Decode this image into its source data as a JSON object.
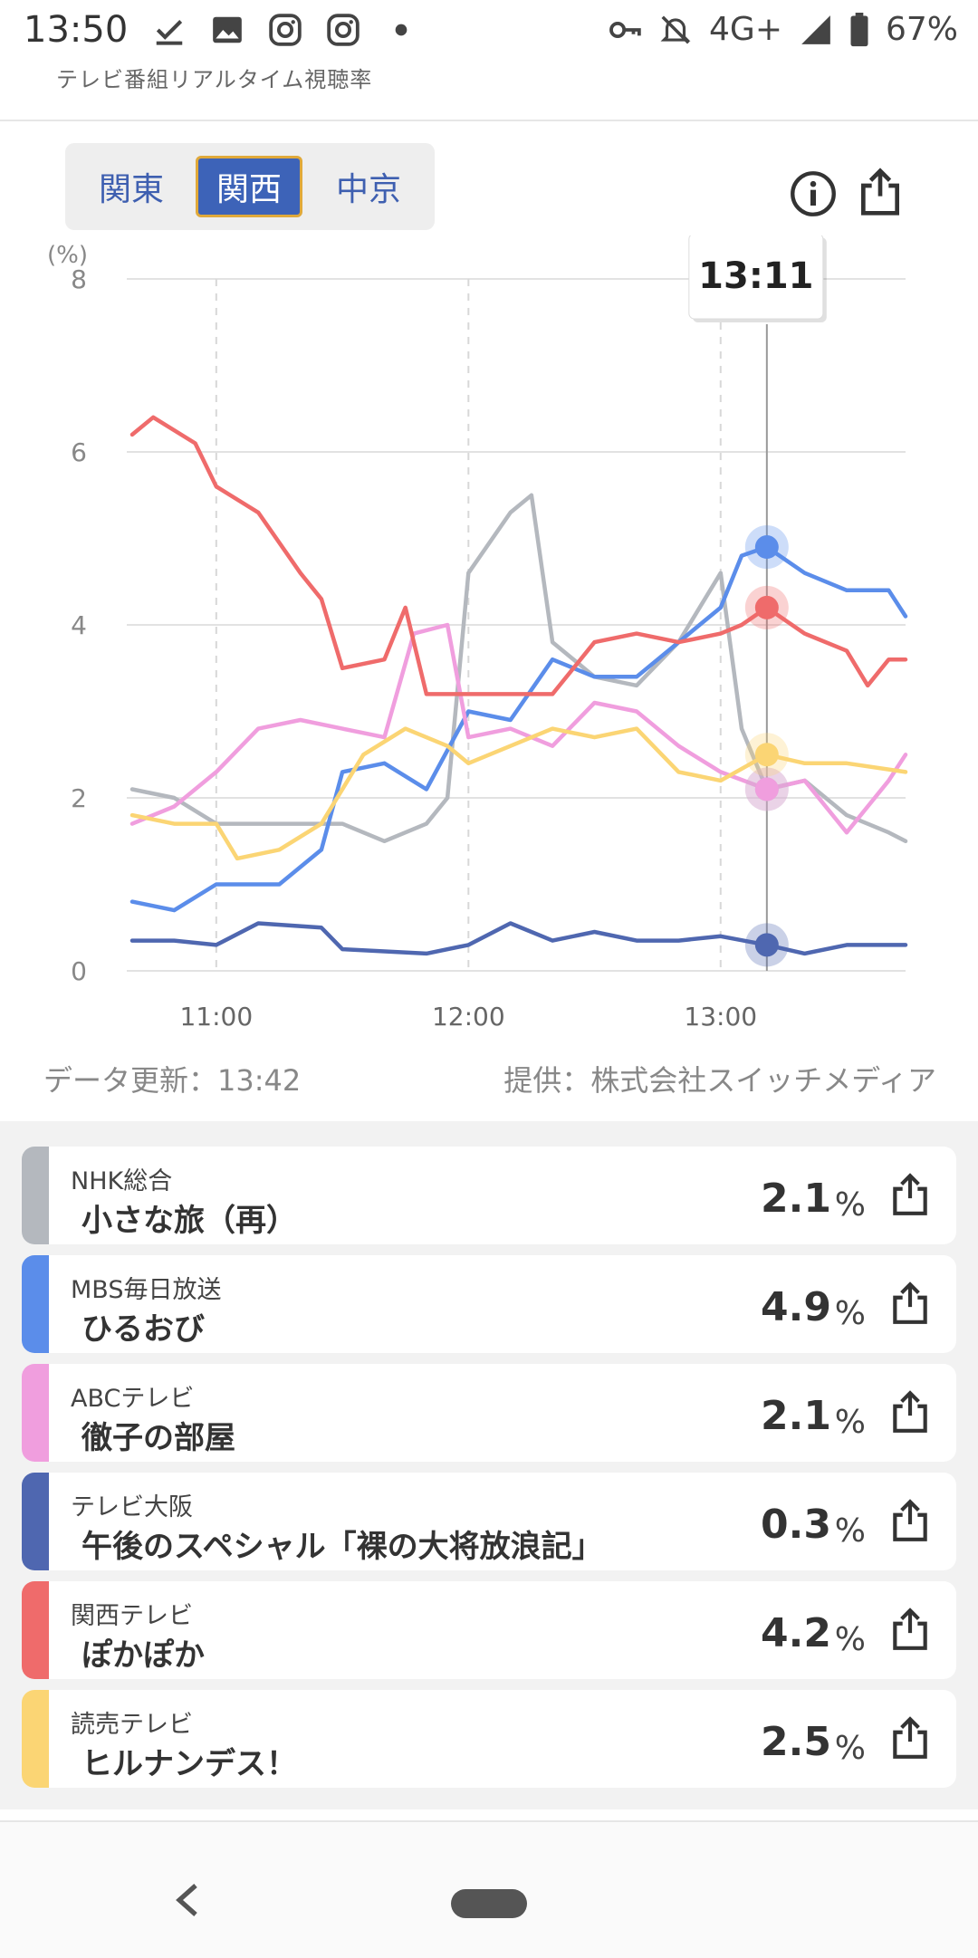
{
  "status_bar": {
    "time": "13:50",
    "network": "4G+",
    "battery": "67%",
    "icons": [
      "check-download-icon",
      "image-icon",
      "instagram-icon",
      "instagram-icon",
      "dot-icon",
      "key-icon",
      "bell-off-icon",
      "signal-icon",
      "battery-icon"
    ]
  },
  "app": {
    "title": "テレビ番組リアルタイム視聴率"
  },
  "regions": [
    {
      "label": "関東",
      "selected": false
    },
    {
      "label": "関西",
      "selected": true
    },
    {
      "label": "中京",
      "selected": false
    }
  ],
  "header_icons": {
    "info": "info-icon",
    "share": "share-icon"
  },
  "colors": {
    "nhk": "#b4b8be",
    "mbs": "#5b8dea",
    "abc": "#f09ede",
    "tvo": "#4f67b0",
    "ktv": "#ef6b6b",
    "ytv": "#fbd574",
    "accent": "#3d63b8"
  },
  "chart_data": {
    "type": "line",
    "ylabel": "(%)",
    "ylim": [
      0,
      8
    ],
    "yticks": [
      0,
      2,
      4,
      6,
      8
    ],
    "xlim": [
      "10:40",
      "13:44"
    ],
    "xticks": [
      "11:00",
      "12:00",
      "13:00"
    ],
    "tooltip": {
      "time": "13:11"
    },
    "series": [
      {
        "name": "NHK総合",
        "key": "nhk",
        "points": [
          [
            "10:40",
            2.1
          ],
          [
            "10:50",
            2.0
          ],
          [
            "11:00",
            1.7
          ],
          [
            "11:15",
            1.7
          ],
          [
            "11:30",
            1.7
          ],
          [
            "11:40",
            1.5
          ],
          [
            "11:50",
            1.7
          ],
          [
            "11:55",
            2.0
          ],
          [
            "12:00",
            4.6
          ],
          [
            "12:10",
            5.3
          ],
          [
            "12:15",
            5.5
          ],
          [
            "12:20",
            3.8
          ],
          [
            "12:30",
            3.4
          ],
          [
            "12:40",
            3.3
          ],
          [
            "12:50",
            3.8
          ],
          [
            "13:00",
            4.6
          ],
          [
            "13:05",
            2.8
          ],
          [
            "13:11",
            2.1
          ],
          [
            "13:20",
            2.2
          ],
          [
            "13:30",
            1.8
          ],
          [
            "13:40",
            1.6
          ],
          [
            "13:44",
            1.5
          ]
        ]
      },
      {
        "name": "MBS毎日放送",
        "key": "mbs",
        "points": [
          [
            "10:40",
            0.8
          ],
          [
            "10:50",
            0.7
          ],
          [
            "11:00",
            1.0
          ],
          [
            "11:15",
            1.0
          ],
          [
            "11:25",
            1.4
          ],
          [
            "11:30",
            2.3
          ],
          [
            "11:40",
            2.4
          ],
          [
            "11:50",
            2.1
          ],
          [
            "12:00",
            3.0
          ],
          [
            "12:10",
            2.9
          ],
          [
            "12:20",
            3.6
          ],
          [
            "12:30",
            3.4
          ],
          [
            "12:40",
            3.4
          ],
          [
            "12:50",
            3.8
          ],
          [
            "13:00",
            4.2
          ],
          [
            "13:05",
            4.8
          ],
          [
            "13:11",
            4.9
          ],
          [
            "13:20",
            4.6
          ],
          [
            "13:30",
            4.4
          ],
          [
            "13:40",
            4.4
          ],
          [
            "13:44",
            4.1
          ]
        ]
      },
      {
        "name": "ABCテレビ",
        "key": "abc",
        "points": [
          [
            "10:40",
            1.7
          ],
          [
            "10:50",
            1.9
          ],
          [
            "11:00",
            2.3
          ],
          [
            "11:10",
            2.8
          ],
          [
            "11:20",
            2.9
          ],
          [
            "11:30",
            2.8
          ],
          [
            "11:40",
            2.7
          ],
          [
            "11:47",
            3.9
          ],
          [
            "11:55",
            4.0
          ],
          [
            "12:00",
            2.7
          ],
          [
            "12:10",
            2.8
          ],
          [
            "12:20",
            2.6
          ],
          [
            "12:30",
            3.1
          ],
          [
            "12:40",
            3.0
          ],
          [
            "12:50",
            2.6
          ],
          [
            "13:00",
            2.3
          ],
          [
            "13:11",
            2.1
          ],
          [
            "13:20",
            2.2
          ],
          [
            "13:30",
            1.6
          ],
          [
            "13:40",
            2.2
          ],
          [
            "13:44",
            2.5
          ]
        ]
      },
      {
        "name": "テレビ大阪",
        "key": "tvo",
        "points": [
          [
            "10:40",
            0.35
          ],
          [
            "10:50",
            0.35
          ],
          [
            "11:00",
            0.3
          ],
          [
            "11:10",
            0.55
          ],
          [
            "11:25",
            0.5
          ],
          [
            "11:30",
            0.25
          ],
          [
            "11:50",
            0.2
          ],
          [
            "12:00",
            0.3
          ],
          [
            "12:10",
            0.55
          ],
          [
            "12:20",
            0.35
          ],
          [
            "12:30",
            0.45
          ],
          [
            "12:40",
            0.35
          ],
          [
            "12:50",
            0.35
          ],
          [
            "13:00",
            0.4
          ],
          [
            "13:11",
            0.3
          ],
          [
            "13:20",
            0.2
          ],
          [
            "13:30",
            0.3
          ],
          [
            "13:44",
            0.3
          ]
        ]
      },
      {
        "name": "関西テレビ",
        "key": "ktv",
        "points": [
          [
            "10:40",
            6.2
          ],
          [
            "10:45",
            6.4
          ],
          [
            "10:55",
            6.1
          ],
          [
            "11:00",
            5.6
          ],
          [
            "11:10",
            5.3
          ],
          [
            "11:20",
            4.6
          ],
          [
            "11:25",
            4.3
          ],
          [
            "11:30",
            3.5
          ],
          [
            "11:40",
            3.6
          ],
          [
            "11:45",
            4.2
          ],
          [
            "11:50",
            3.2
          ],
          [
            "12:00",
            3.2
          ],
          [
            "12:10",
            3.2
          ],
          [
            "12:20",
            3.2
          ],
          [
            "12:30",
            3.8
          ],
          [
            "12:40",
            3.9
          ],
          [
            "12:50",
            3.8
          ],
          [
            "13:00",
            3.9
          ],
          [
            "13:05",
            4.0
          ],
          [
            "13:11",
            4.2
          ],
          [
            "13:20",
            3.9
          ],
          [
            "13:30",
            3.7
          ],
          [
            "13:35",
            3.3
          ],
          [
            "13:40",
            3.6
          ],
          [
            "13:44",
            3.6
          ]
        ]
      },
      {
        "name": "読売テレビ",
        "key": "ytv",
        "points": [
          [
            "10:40",
            1.8
          ],
          [
            "10:50",
            1.7
          ],
          [
            "11:00",
            1.7
          ],
          [
            "11:05",
            1.3
          ],
          [
            "11:15",
            1.4
          ],
          [
            "11:25",
            1.7
          ],
          [
            "11:35",
            2.5
          ],
          [
            "11:45",
            2.8
          ],
          [
            "11:55",
            2.6
          ],
          [
            "12:00",
            2.4
          ],
          [
            "12:10",
            2.6
          ],
          [
            "12:20",
            2.8
          ],
          [
            "12:30",
            2.7
          ],
          [
            "12:40",
            2.8
          ],
          [
            "12:50",
            2.3
          ],
          [
            "13:00",
            2.2
          ],
          [
            "13:11",
            2.5
          ],
          [
            "13:20",
            2.4
          ],
          [
            "13:30",
            2.4
          ],
          [
            "13:44",
            2.3
          ]
        ]
      }
    ]
  },
  "footer": {
    "updated": "データ更新：13:42",
    "provider": "提供：株式会社スイッチメディア"
  },
  "channels": [
    {
      "key": "nhk",
      "channel": "NHK総合",
      "program": "小さな旅（再）",
      "rating": "2.1",
      "unit": "%"
    },
    {
      "key": "mbs",
      "channel": "MBS毎日放送",
      "program": "ひるおび",
      "rating": "4.9",
      "unit": "%"
    },
    {
      "key": "abc",
      "channel": "ABCテレビ",
      "program": "徹子の部屋",
      "rating": "2.1",
      "unit": "%"
    },
    {
      "key": "tvo",
      "channel": "テレビ大阪",
      "program": "午後のスペシャル「裸の大将放浪記」",
      "rating": "0.3",
      "unit": "%"
    },
    {
      "key": "ktv",
      "channel": "関西テレビ",
      "program": "ぽかぽか",
      "rating": "4.2",
      "unit": "%"
    },
    {
      "key": "ytv",
      "channel": "読売テレビ",
      "program": "ヒルナンデス！",
      "rating": "2.5",
      "unit": "%"
    }
  ],
  "nav": {
    "back": "back-icon",
    "home": "home-pill"
  }
}
